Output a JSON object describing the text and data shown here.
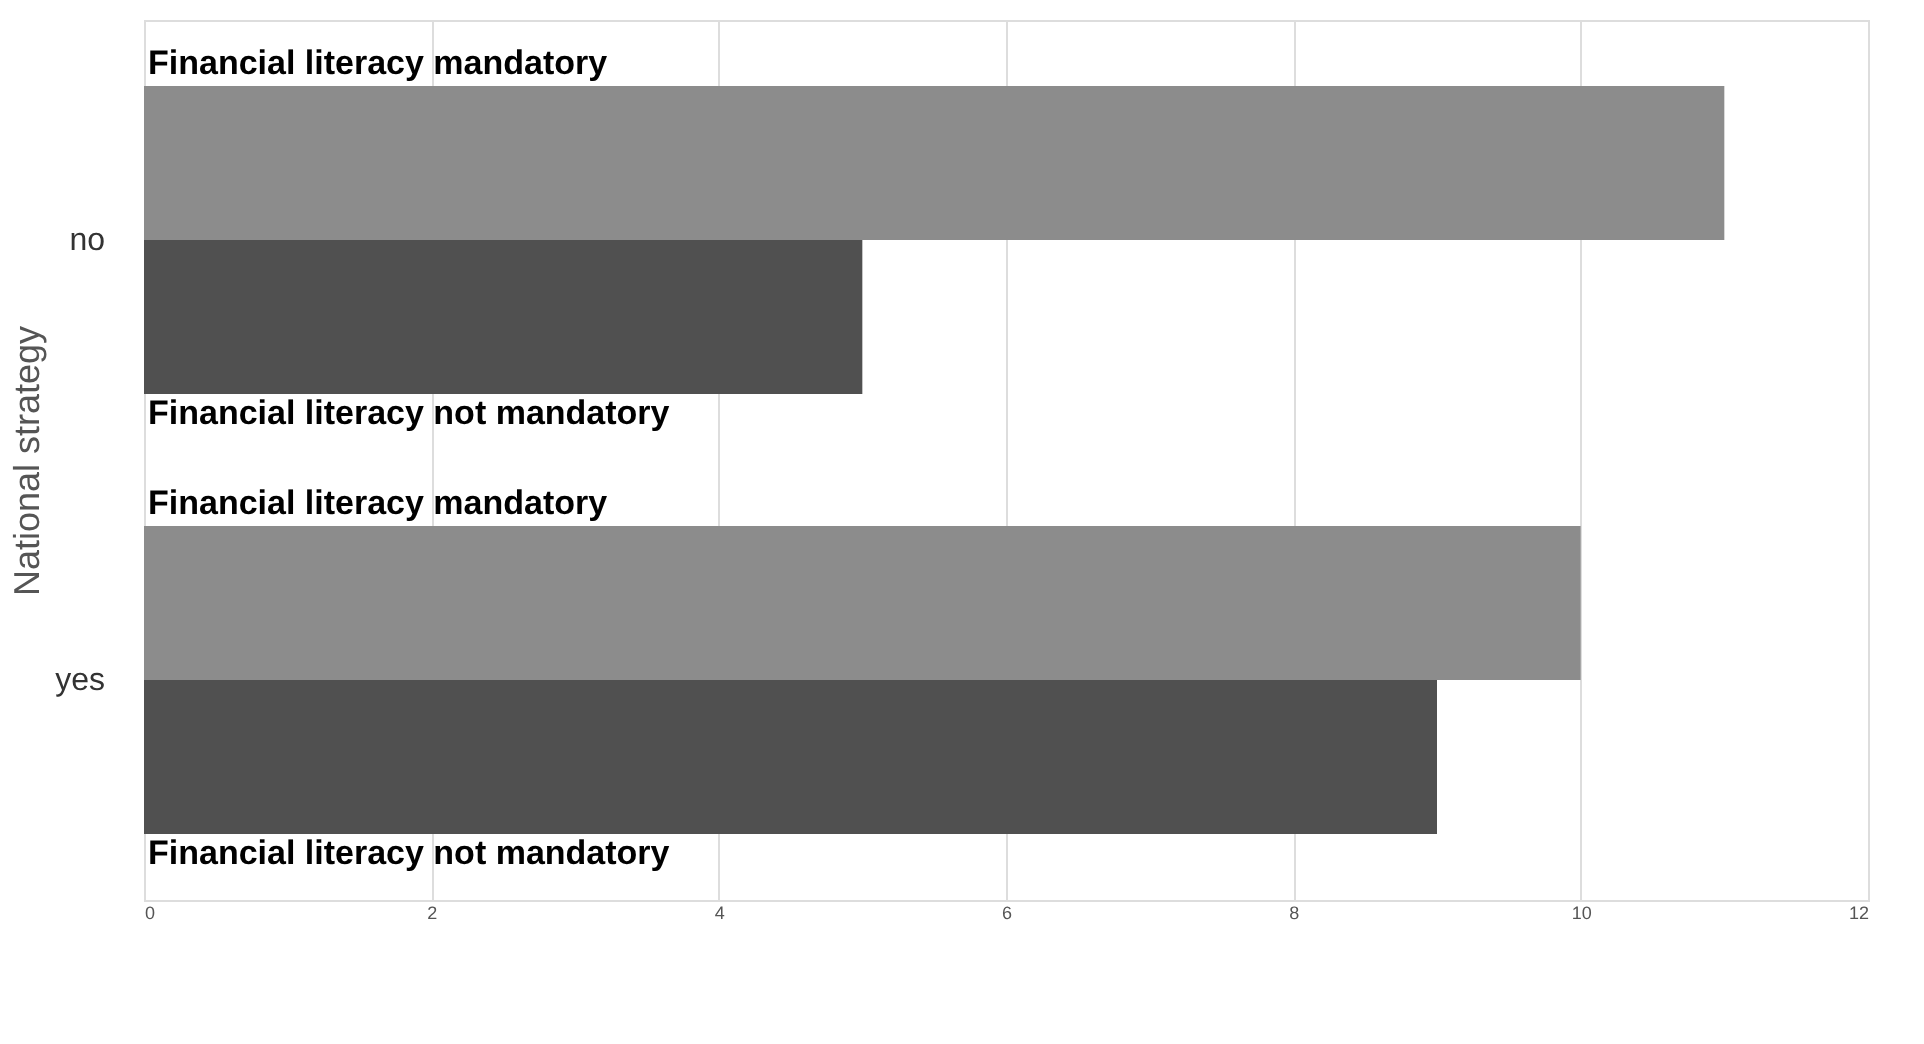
{
  "chart_data": {
    "type": "bar",
    "orientation": "horizontal",
    "ylabel": "National strategy",
    "categories": [
      "no",
      "yes"
    ],
    "series": [
      {
        "name": "Financial literacy mandatory",
        "color": "#8c8c8c",
        "values": [
          11,
          10
        ]
      },
      {
        "name": "Financial literacy not mandatory",
        "color": "#505050",
        "values": [
          5,
          9
        ]
      }
    ],
    "xlim": [
      0,
      12
    ],
    "xticks": [
      0,
      2,
      4,
      6,
      8,
      10,
      12
    ],
    "grid": "x",
    "legend": false
  }
}
